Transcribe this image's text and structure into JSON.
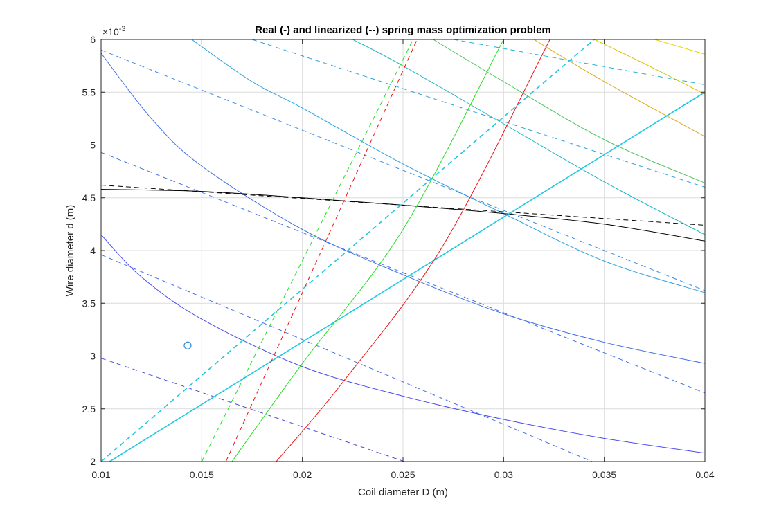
{
  "chart_data": {
    "type": "line",
    "title": "Real (-) and linearized (--) spring mass optimization problem",
    "xlabel": "Coil diameter D (m)",
    "ylabel": "Wire diameter d (m)",
    "exponent_label": "×10",
    "exponent_power": "-3",
    "xlim": [
      0.01,
      0.04
    ],
    "ylim": [
      2,
      6
    ],
    "y_scale_note": "y values in units of 1e-3",
    "grid": true,
    "x_ticks": [
      0.01,
      0.015,
      0.02,
      0.025,
      0.03,
      0.035,
      0.04
    ],
    "x_tick_labels": [
      "0.01",
      "0.015",
      "0.02",
      "0.025",
      "0.03",
      "0.035",
      "0.04"
    ],
    "y_ticks": [
      2,
      2.5,
      3,
      3.5,
      4,
      4.5,
      5,
      5.5,
      6
    ],
    "y_tick_labels": [
      "2",
      "2.5",
      "3",
      "3.5",
      "4",
      "4.5",
      "5",
      "5.5",
      "6"
    ],
    "series": [
      {
        "style": "solid",
        "color": "#4a4af0",
        "points": [
          [
            0.01,
            4.15
          ],
          [
            0.012,
            3.75
          ],
          [
            0.015,
            3.35
          ],
          [
            0.02,
            2.9
          ],
          [
            0.025,
            2.62
          ],
          [
            0.03,
            2.4
          ],
          [
            0.035,
            2.22
          ],
          [
            0.04,
            2.08
          ]
        ]
      },
      {
        "style": "solid",
        "color": "#3f6fe8",
        "points": [
          [
            0.01,
            5.87
          ],
          [
            0.0125,
            5.25
          ],
          [
            0.015,
            4.8
          ],
          [
            0.02,
            4.2
          ],
          [
            0.025,
            3.77
          ],
          [
            0.03,
            3.4
          ],
          [
            0.035,
            3.13
          ],
          [
            0.04,
            2.93
          ]
        ]
      },
      {
        "style": "solid",
        "color": "#2a9fe0",
        "points": [
          [
            0.0145,
            6.0
          ],
          [
            0.0175,
            5.6
          ],
          [
            0.02,
            5.35
          ],
          [
            0.025,
            4.82
          ],
          [
            0.03,
            4.35
          ],
          [
            0.035,
            3.9
          ],
          [
            0.04,
            3.6
          ]
        ]
      },
      {
        "style": "solid",
        "color": "#20b8c8",
        "points": [
          [
            0.0225,
            6.0
          ],
          [
            0.025,
            5.75
          ],
          [
            0.03,
            5.2
          ],
          [
            0.035,
            4.65
          ],
          [
            0.04,
            4.15
          ]
        ]
      },
      {
        "style": "solid",
        "color": "#50c060",
        "points": [
          [
            0.0265,
            6.0
          ],
          [
            0.03,
            5.6
          ],
          [
            0.035,
            5.05
          ],
          [
            0.04,
            4.64
          ]
        ]
      },
      {
        "style": "solid",
        "color": "#e0a820",
        "points": [
          [
            0.0315,
            6.0
          ],
          [
            0.035,
            5.6
          ],
          [
            0.04,
            5.08
          ]
        ]
      },
      {
        "style": "solid",
        "color": "#d8c000",
        "points": [
          [
            0.0345,
            6.0
          ],
          [
            0.037,
            5.77
          ],
          [
            0.04,
            5.48
          ]
        ]
      },
      {
        "style": "solid",
        "color": "#e6d600",
        "points": [
          [
            0.0375,
            6.0
          ],
          [
            0.04,
            5.86
          ]
        ]
      },
      {
        "style": "dashed",
        "color": "#4a4ad8",
        "points": [
          [
            0.01,
            2.98
          ],
          [
            0.03,
            1.68
          ]
        ]
      },
      {
        "style": "dashed",
        "color": "#3f6fe8",
        "points": [
          [
            0.01,
            3.96
          ],
          [
            0.04,
            1.55
          ]
        ]
      },
      {
        "style": "dashed",
        "color": "#3f6fe8",
        "points": [
          [
            0.01,
            4.93
          ],
          [
            0.04,
            2.65
          ]
        ]
      },
      {
        "style": "dashed",
        "color": "#3a8ae8",
        "points": [
          [
            0.01,
            5.9
          ],
          [
            0.04,
            3.62
          ]
        ]
      },
      {
        "style": "dashed",
        "color": "#2aa0e0",
        "points": [
          [
            0.0175,
            6.0
          ],
          [
            0.04,
            4.6
          ]
        ]
      },
      {
        "style": "dashed",
        "color": "#20b0d8",
        "points": [
          [
            0.0275,
            6.0
          ],
          [
            0.04,
            5.57
          ]
        ]
      },
      {
        "style": "solid",
        "color": "#000000",
        "points": [
          [
            0.01,
            4.58
          ],
          [
            0.015,
            4.56
          ],
          [
            0.02,
            4.5
          ],
          [
            0.025,
            4.43
          ],
          [
            0.03,
            4.35
          ],
          [
            0.035,
            4.25
          ],
          [
            0.04,
            4.09
          ]
        ]
      },
      {
        "style": "dashed",
        "color": "#000000",
        "points": [
          [
            0.01,
            4.62
          ],
          [
            0.04,
            4.24
          ]
        ]
      },
      {
        "style": "solid",
        "color": "#20c8e0",
        "width": 1.6,
        "points": [
          [
            0.01,
            1.95
          ],
          [
            0.04,
            5.5
          ]
        ]
      },
      {
        "style": "dashed",
        "color": "#20c8e0",
        "width": 1.6,
        "points": [
          [
            0.01,
            2.0
          ],
          [
            0.0345,
            6.0
          ]
        ]
      },
      {
        "style": "solid",
        "color": "#20e020",
        "points": [
          [
            0.0165,
            2.0
          ],
          [
            0.02,
            2.93
          ],
          [
            0.025,
            4.2
          ],
          [
            0.03,
            6.0
          ]
        ]
      },
      {
        "style": "dashed",
        "color": "#20e020",
        "points": [
          [
            0.015,
            2.0
          ],
          [
            0.0255,
            6.0
          ]
        ]
      },
      {
        "style": "solid",
        "color": "#ee1010",
        "points": [
          [
            0.0187,
            2.0
          ],
          [
            0.022,
            2.75
          ],
          [
            0.027,
            4.05
          ],
          [
            0.0323,
            6.0
          ]
        ]
      },
      {
        "style": "dashed",
        "color": "#ee1010",
        "points": [
          [
            0.0162,
            2.0
          ],
          [
            0.0257,
            6.0
          ]
        ]
      }
    ],
    "markers": [
      {
        "shape": "circle",
        "color": "#2a8fd8",
        "x": 0.0143,
        "y": 3.1
      }
    ]
  }
}
